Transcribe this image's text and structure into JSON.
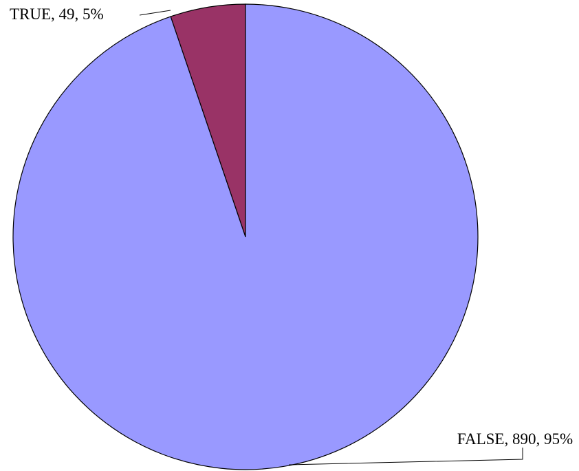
{
  "chart_data": {
    "type": "pie",
    "categories": [
      "TRUE",
      "FALSE"
    ],
    "values": [
      49,
      890
    ],
    "value_labels": [
      "TRUE, 49, 5%",
      "FALSE, 890, 95%"
    ],
    "colors": [
      "#993366",
      "#9999ff"
    ]
  }
}
